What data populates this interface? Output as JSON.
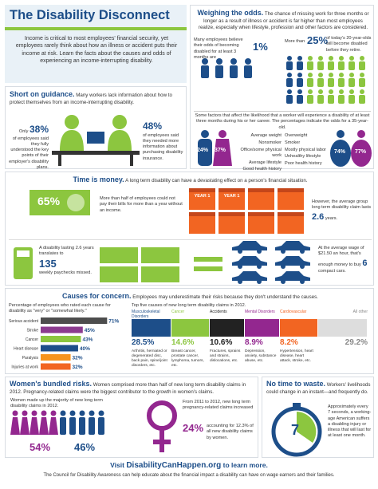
{
  "header": {
    "title": "The Disability Disconnect",
    "intro": "Income is critical to most employees' financial security, yet employees rarely think about how an illness or accident puts their income at risk. Learn the facts about the causes and odds of experiencing an income-interrupting disability."
  },
  "weighing": {
    "heading": "Weighing the odds.",
    "text": "The chance of missing work for three months or longer as a result of illness or accident is far higher than most employees realize, especially when lifestyle, profession and other factors are considered.",
    "belief": {
      "text": "Many employees believe their odds of becoming disabled for at least 3 months are",
      "stat": "1%"
    },
    "reality": {
      "prefix": "More than",
      "stat": "25%",
      "text": "of today's 20-year-olds will become disabled before they retire."
    },
    "factors_intro": "Some factors that affect the likelihood that a worker will experience a disability of at least three months during his or her career. The percentages indicate the odds for a 35-year-old.",
    "low": {
      "male": "24%",
      "female": "37%",
      "items": [
        "Average weight",
        "Nonsmoker",
        "Office/some physical work",
        "Average lifestyle",
        "Good health history"
      ]
    },
    "high": {
      "male": "74%",
      "female": "77%",
      "items": [
        "Overweight",
        "Smoker",
        "Mostly physical labor",
        "Unhealthy lifestyle",
        "Poor health history"
      ]
    }
  },
  "guidance": {
    "heading": "Short on guidance.",
    "text": "Many workers lack information about how to protect themselves from an income-interrupting disability.",
    "stat1": {
      "prefix": "Only",
      "value": "38%",
      "text": "of employees said they fully understood the key points of their employer's disability plans."
    },
    "stat2": {
      "value": "48%",
      "text": "of employees said they needed more information about purchasing disability insurance."
    }
  },
  "time": {
    "heading": "Time is money.",
    "text": "A long term disability can have a devastating effect on a person's financial situation.",
    "bills": {
      "value": "65%",
      "text": "More than half of employees could not pay their bills for more than a year without an income."
    },
    "calendars": [
      "YEAR 1",
      "YEAR 1"
    ],
    "claim": {
      "text": "However, the average group long term disability claim lasts",
      "value": "2.6",
      "unit": "years."
    },
    "paychecks": {
      "pre": "A disability lasting 2.6 years translates to",
      "value": "135",
      "post": "weekly paychecks missed."
    },
    "cars": {
      "pre": "At the average wage of $21.50 an hour, that's enough money to buy",
      "value": "6",
      "post": "compact cars."
    }
  },
  "causes": {
    "heading": "Causes for concern.",
    "text": "Employees may underestimate their risks because they don't understand the causes.",
    "chart": {
      "type": "bar",
      "title": "Percentage of employees who rated each cause for disability as \"very\" or \"somewhat likely.\"",
      "categories": [
        "Serious accident",
        "Stroke",
        "Cancer",
        "Heart disease",
        "Paralysis",
        "Injuries at work"
      ],
      "values": [
        71,
        45,
        43,
        40,
        32,
        32
      ],
      "value_labels": [
        "71%",
        "45%",
        "43%",
        "40%",
        "32%",
        "32%"
      ],
      "colors": [
        "#4d4d4d",
        "#8b3a8f",
        "#8cc63f",
        "#1d4e89",
        "#f7941d",
        "#f26522"
      ],
      "xlim": [
        0,
        75
      ]
    },
    "claims": {
      "title": "Top five causes of new long term disability claims in 2012.",
      "items": [
        {
          "name": "Musculoskeletal Disorders",
          "value": "28.5%",
          "desc": "Arthritis, herniated or degenerated disc, back pain, spine/joint disorders, etc.",
          "color": "#1d4e89"
        },
        {
          "name": "Cancer",
          "value": "14.6%",
          "desc": "Breast cancer, prostate cancer, lymphoma, tumors, etc.",
          "color": "#8cc63f"
        },
        {
          "name": "Accidents",
          "value": "10.6%",
          "desc": "Fractures, sprains and strains, dislocations, etc.",
          "color": "#222222"
        },
        {
          "name": "Mental Disorders",
          "value": "8.9%",
          "desc": "Depression, anxiety, substance abuse, etc.",
          "color": "#93278f"
        },
        {
          "name": "Cardiovascular",
          "value": "8.2%",
          "desc": "Hypertension, heart disease, heart attack, stroke, etc.",
          "color": "#f26522"
        },
        {
          "name": "All other",
          "value": "29.2%",
          "desc": "",
          "color": "#dddddd"
        }
      ]
    }
  },
  "women": {
    "heading": "Women's bundled risks.",
    "text": "Women comprised more than half of new long term disability claims in 2012. Pregnancy-related claims were the biggest contributor to the growth in women's claims.",
    "majority": "Women made up the majority of new long term disability claims in 2012.",
    "female": "54%",
    "male": "46%",
    "growth": "From 2011 to 2012, new long term pregnancy-related claims increased",
    "growth_value": "24%",
    "share_text": "accounting for 12.3% of all new disability claims by women."
  },
  "notime": {
    "heading": "No time to waste.",
    "text": "Workers' livelihoods could change in an instant—and frequently do.",
    "value": "7",
    "stat_text": "Approximately every 7 seconds, a working-age American suffers a disabling injury or illness that will last for at least one month."
  },
  "footer": {
    "visit_pre": "Visit",
    "site": "DisabilityCanHappen.org",
    "visit_post": "to learn more.",
    "text": "The Council for Disability Awareness can help educate about the financial impact a disability can have on wage earners and their families."
  }
}
